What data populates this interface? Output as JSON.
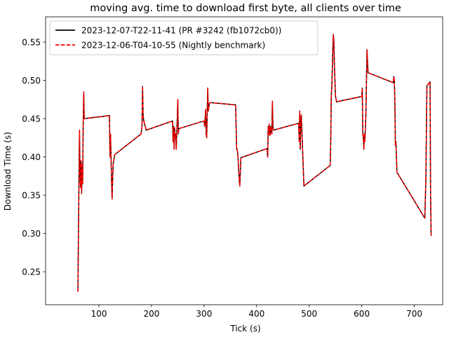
{
  "chart_data": {
    "type": "line",
    "title": "moving avg. time to download first byte, all clients over time",
    "xlabel": "Tick (s)",
    "ylabel": "Download Time (s)",
    "xlim": [
      -1.5,
      754
    ],
    "ylim": [
      0.207,
      0.583
    ],
    "xticks": [
      100,
      200,
      300,
      400,
      500,
      600,
      700
    ],
    "yticks": [
      0.25,
      0.3,
      0.35,
      0.4,
      0.45,
      0.5,
      0.55
    ],
    "ytick_labels": [
      "0.25",
      "0.30",
      "0.35",
      "0.40",
      "0.45",
      "0.50",
      "0.55"
    ],
    "grid": false,
    "legend_position": "upper-left",
    "series": [
      {
        "name": "2023-12-07-T22-11-41 (PR #3242 (fb1072cb0))",
        "color": "#000000",
        "style": "solid",
        "x": [
          60,
          61,
          62,
          63,
          64,
          65,
          66,
          67,
          68,
          69,
          70,
          71,
          72,
          120,
          121,
          122,
          123,
          124,
          125,
          126,
          127,
          128,
          130,
          180,
          182,
          183,
          184,
          185,
          190,
          240,
          241,
          242,
          243,
          244,
          245,
          246,
          247,
          248,
          249,
          250,
          251,
          252,
          300,
          301,
          302,
          303,
          304,
          305,
          306,
          307,
          308,
          310,
          312,
          360,
          362,
          363,
          364,
          365,
          366,
          368,
          370,
          420,
          421,
          422,
          423,
          424,
          425,
          426,
          427,
          428,
          429,
          430,
          431,
          432,
          480,
          481,
          482,
          483,
          484,
          485,
          490,
          540,
          541,
          542,
          543,
          545,
          546,
          547,
          548,
          549,
          550,
          552,
          600,
          601,
          602,
          603,
          604,
          605,
          606,
          607,
          608,
          610,
          612,
          660,
          661,
          662,
          663,
          664,
          665,
          667,
          720,
          722,
          724,
          730,
          731,
          732
        ],
        "y": [
          0.224,
          0.3,
          0.37,
          0.435,
          0.38,
          0.36,
          0.395,
          0.352,
          0.39,
          0.365,
          0.44,
          0.485,
          0.45,
          0.454,
          0.4,
          0.43,
          0.4,
          0.37,
          0.345,
          0.37,
          0.39,
          0.395,
          0.403,
          0.43,
          0.44,
          0.492,
          0.455,
          0.448,
          0.435,
          0.447,
          0.42,
          0.44,
          0.41,
          0.438,
          0.425,
          0.43,
          0.41,
          0.43,
          0.45,
          0.475,
          0.43,
          0.437,
          0.447,
          0.44,
          0.45,
          0.462,
          0.43,
          0.425,
          0.458,
          0.49,
          0.46,
          0.47,
          0.471,
          0.468,
          0.41,
          0.41,
          0.405,
          0.395,
          0.38,
          0.362,
          0.399,
          0.411,
          0.4,
          0.44,
          0.43,
          0.443,
          0.428,
          0.43,
          0.44,
          0.435,
          0.43,
          0.473,
          0.44,
          0.435,
          0.444,
          0.42,
          0.46,
          0.41,
          0.45,
          0.455,
          0.362,
          0.389,
          0.42,
          0.48,
          0.49,
          0.54,
          0.56,
          0.55,
          0.52,
          0.5,
          0.48,
          0.472,
          0.479,
          0.49,
          0.43,
          0.426,
          0.41,
          0.43,
          0.42,
          0.44,
          0.46,
          0.54,
          0.51,
          0.497,
          0.505,
          0.5,
          0.475,
          0.415,
          0.42,
          0.38,
          0.32,
          0.37,
          0.493,
          0.498,
          0.35,
          0.297
        ],
        "note_color": "black"
      },
      {
        "name": "2023-12-06-T04-10-55 (Nightly benchmark)",
        "color": "#ff0000",
        "style": "dashed",
        "x": [
          60,
          61,
          62,
          63,
          64,
          65,
          66,
          67,
          68,
          69,
          70,
          71,
          72,
          120,
          121,
          122,
          123,
          124,
          125,
          126,
          127,
          128,
          130,
          180,
          182,
          183,
          184,
          185,
          190,
          240,
          241,
          242,
          243,
          244,
          245,
          246,
          247,
          248,
          249,
          250,
          251,
          252,
          300,
          301,
          302,
          303,
          304,
          305,
          306,
          307,
          308,
          310,
          312,
          360,
          362,
          363,
          364,
          365,
          366,
          368,
          370,
          420,
          421,
          422,
          423,
          424,
          425,
          426,
          427,
          428,
          429,
          430,
          431,
          432,
          480,
          481,
          482,
          483,
          484,
          485,
          490,
          540,
          541,
          542,
          543,
          545,
          546,
          547,
          548,
          549,
          550,
          552,
          600,
          601,
          602,
          603,
          604,
          605,
          606,
          607,
          608,
          610,
          612,
          660,
          661,
          662,
          663,
          664,
          665,
          667,
          720,
          722,
          724,
          730,
          731,
          732
        ],
        "y": [
          0.224,
          0.3,
          0.37,
          0.435,
          0.38,
          0.36,
          0.395,
          0.352,
          0.39,
          0.365,
          0.44,
          0.485,
          0.45,
          0.454,
          0.4,
          0.43,
          0.4,
          0.37,
          0.345,
          0.37,
          0.39,
          0.395,
          0.403,
          0.43,
          0.44,
          0.492,
          0.455,
          0.448,
          0.435,
          0.447,
          0.42,
          0.44,
          0.41,
          0.438,
          0.425,
          0.43,
          0.41,
          0.43,
          0.45,
          0.475,
          0.43,
          0.437,
          0.447,
          0.44,
          0.45,
          0.462,
          0.43,
          0.425,
          0.458,
          0.49,
          0.46,
          0.47,
          0.471,
          0.468,
          0.41,
          0.41,
          0.405,
          0.395,
          0.38,
          0.362,
          0.399,
          0.411,
          0.4,
          0.44,
          0.43,
          0.443,
          0.428,
          0.43,
          0.44,
          0.435,
          0.43,
          0.473,
          0.44,
          0.435,
          0.444,
          0.42,
          0.46,
          0.41,
          0.45,
          0.455,
          0.362,
          0.389,
          0.42,
          0.48,
          0.49,
          0.54,
          0.56,
          0.55,
          0.52,
          0.5,
          0.48,
          0.472,
          0.479,
          0.49,
          0.43,
          0.426,
          0.41,
          0.43,
          0.42,
          0.44,
          0.46,
          0.54,
          0.51,
          0.497,
          0.505,
          0.5,
          0.475,
          0.415,
          0.42,
          0.38,
          0.32,
          0.37,
          0.493,
          0.498,
          0.35,
          0.297
        ]
      }
    ]
  }
}
